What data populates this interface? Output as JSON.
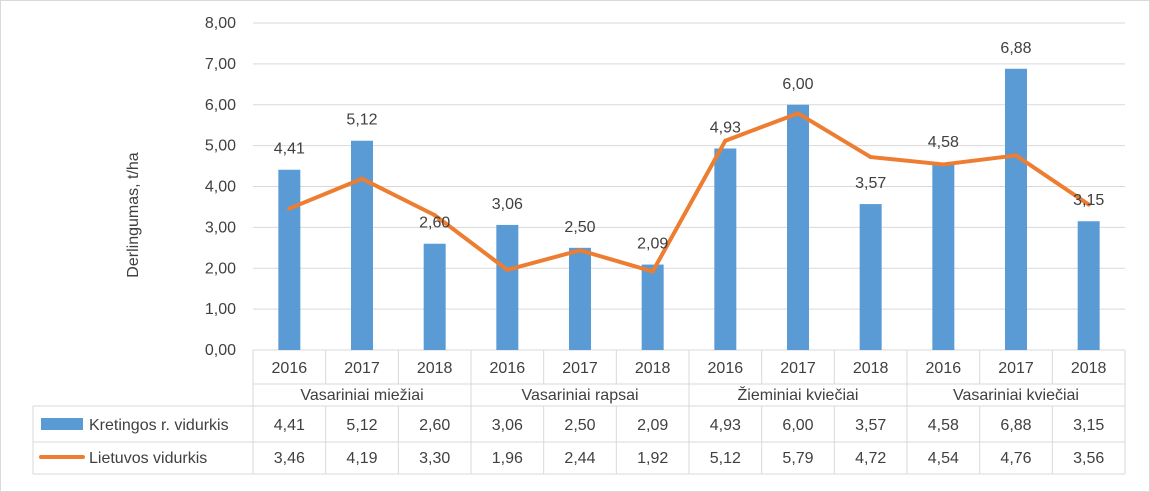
{
  "chart_data": {
    "type": "bar",
    "ylabel": "Derlingumas, t/ha",
    "ylim": [
      0,
      8
    ],
    "y_ticks": [
      "0,00",
      "1,00",
      "2,00",
      "3,00",
      "4,00",
      "5,00",
      "6,00",
      "7,00",
      "8,00"
    ],
    "grid": true,
    "groups": [
      "Vasariniai miežiai",
      "Vasariniai rapsai",
      "Žieminiai kviečiai",
      "Vasariniai kviečiai"
    ],
    "years": [
      "2016",
      "2017",
      "2018"
    ],
    "series": [
      {
        "name": "Kretingos r. vidurkis",
        "type": "bar",
        "color": "#5b9bd5",
        "values": [
          4.41,
          5.12,
          2.6,
          3.06,
          2.5,
          2.09,
          4.93,
          6.0,
          3.57,
          4.58,
          6.88,
          3.15
        ],
        "labels": [
          "4,41",
          "5,12",
          "2,60",
          "3,06",
          "2,50",
          "2,09",
          "4,93",
          "6,00",
          "3,57",
          "4,58",
          "6,88",
          "3,15"
        ]
      },
      {
        "name": "Lietuvos vidurkis",
        "type": "line",
        "color": "#ed7d31",
        "values": [
          3.46,
          4.19,
          3.3,
          1.96,
          2.44,
          1.92,
          5.12,
          5.79,
          4.72,
          4.54,
          4.76,
          3.56
        ],
        "labels": [
          "3,46",
          "4,19",
          "3,30",
          "1,96",
          "2,44",
          "1,92",
          "5,12",
          "5,79",
          "4,72",
          "4,54",
          "4,76",
          "3,56"
        ]
      }
    ]
  }
}
